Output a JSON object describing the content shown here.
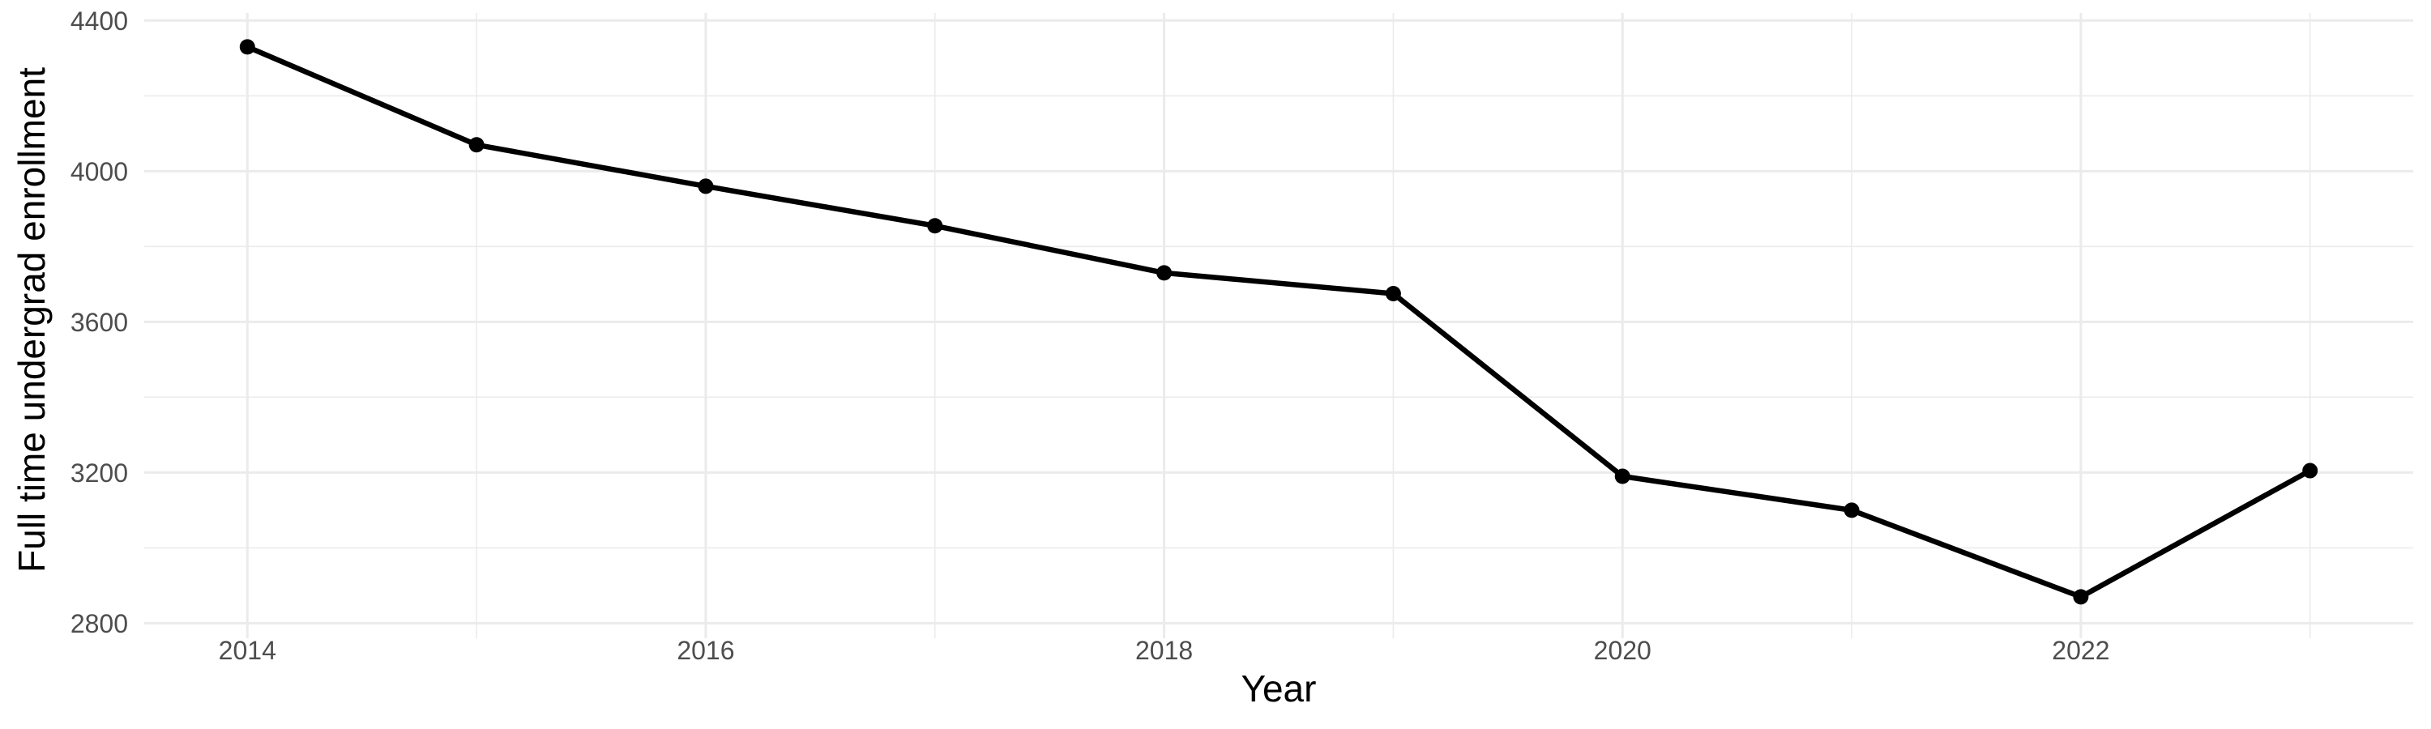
{
  "chart_data": {
    "type": "line",
    "title": "",
    "xlabel": "Year",
    "ylabel": "Full time undergrad enrollment",
    "x": [
      2014,
      2015,
      2016,
      2017,
      2018,
      2019,
      2020,
      2021,
      2022,
      2023
    ],
    "values": [
      4330,
      4070,
      3960,
      3855,
      3730,
      3675,
      3190,
      3100,
      2870,
      3205
    ],
    "series_name": "Full time undergrad enrollment",
    "xlim": [
      2013.55,
      2023.45
    ],
    "ylim": [
      2760,
      4420
    ],
    "x_major_ticks": [
      2014,
      2016,
      2018,
      2020,
      2022
    ],
    "x_tick_labels": [
      "2014",
      "2016",
      "2018",
      "2020",
      "2022"
    ],
    "x_minor_gridlines": [
      2015,
      2017,
      2019,
      2021,
      2023
    ],
    "y_major_ticks": [
      2800,
      3200,
      3600,
      4000,
      4400
    ],
    "y_tick_labels": [
      "2800",
      "3200",
      "3600",
      "4000",
      "4400"
    ],
    "y_minor_gridlines": [
      3000,
      3400,
      3800,
      4200
    ],
    "grid": true,
    "legend_position": "none",
    "colors": {
      "line": "#000000",
      "point": "#000000",
      "grid": "#EBEBEB",
      "tick_label": "#4D4D4D",
      "axis_title": "#000000",
      "background": "#FFFFFF"
    }
  }
}
